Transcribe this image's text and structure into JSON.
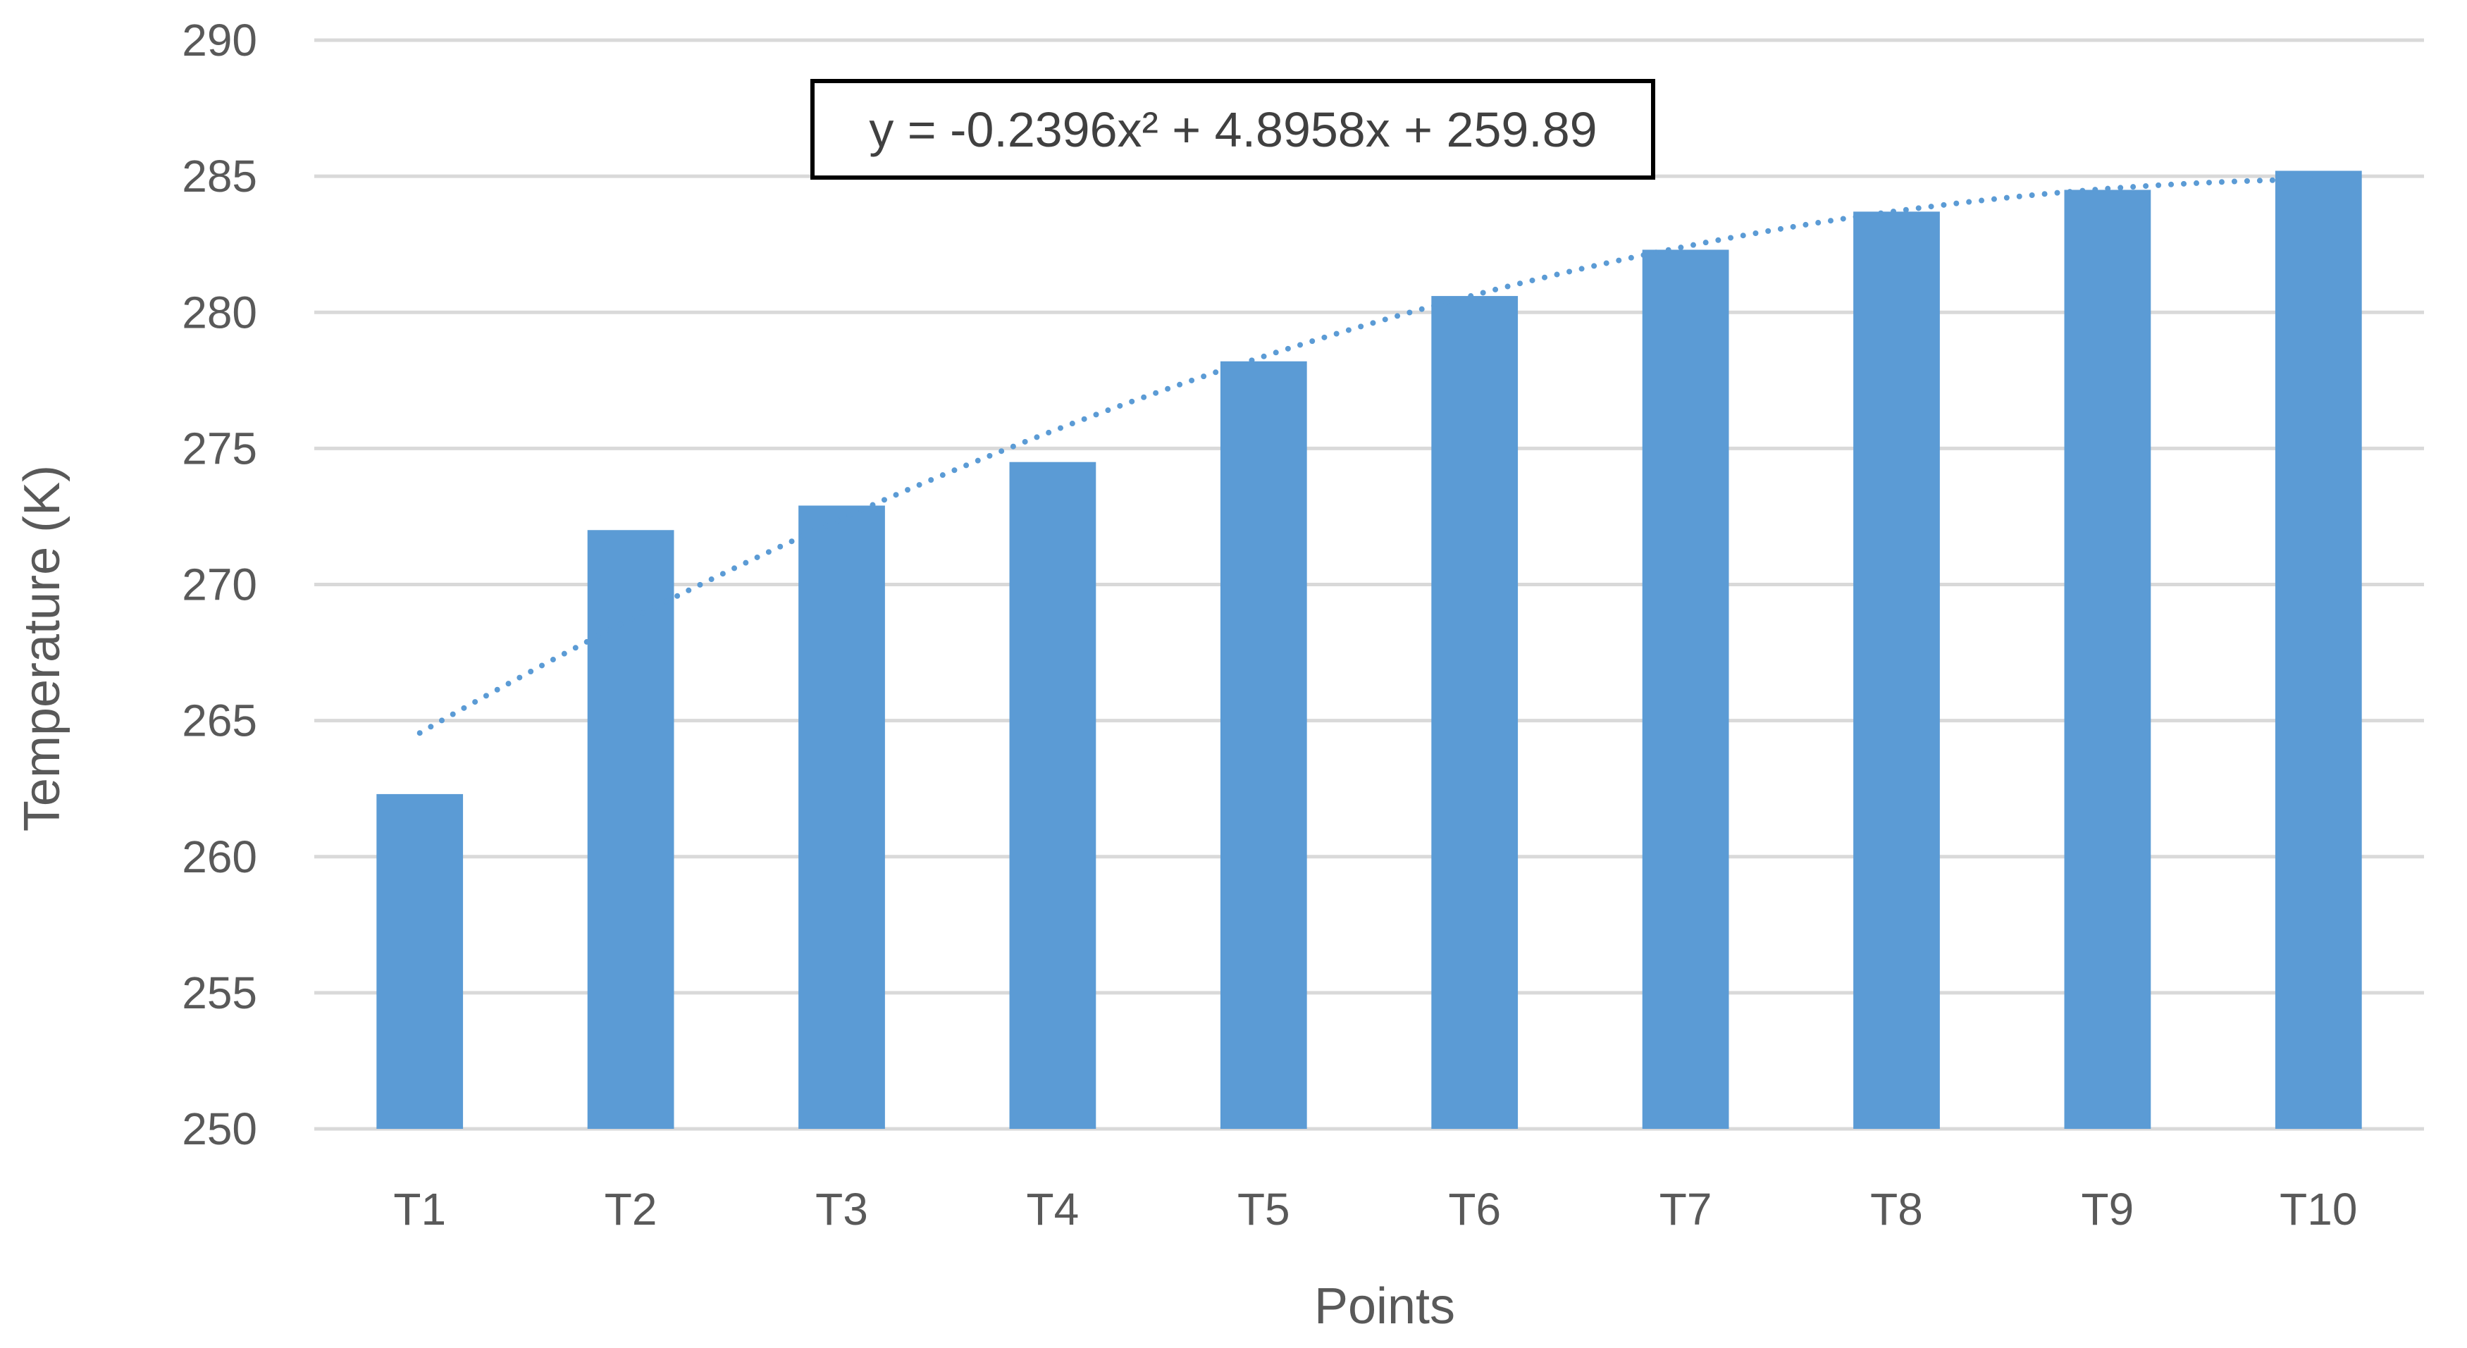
{
  "chart_data": {
    "type": "bar",
    "categories": [
      "T1",
      "T2",
      "T3",
      "T4",
      "T5",
      "T6",
      "T7",
      "T8",
      "T9",
      "T10"
    ],
    "values": [
      262.3,
      272.0,
      272.9,
      274.5,
      278.2,
      280.6,
      282.3,
      283.7,
      284.5,
      285.2
    ],
    "xlabel": "Points",
    "ylabel": "Temperature (K)",
    "ylim": [
      250,
      290
    ],
    "yticks": [
      "250",
      "255",
      "260",
      "265",
      "270",
      "275",
      "280",
      "285",
      "290"
    ],
    "grid": "horizontal",
    "trendline": {
      "type": "polynomial",
      "order": 2,
      "coefficients": [
        -0.2396,
        4.8958,
        259.89
      ],
      "equation": "y = -0.2396x² + 4.8958x + 259.89",
      "style": "dotted"
    },
    "colors": {
      "bar": "#5B9BD5",
      "trendline": "#5B9BD5",
      "grid": "#D9D9D9"
    }
  }
}
